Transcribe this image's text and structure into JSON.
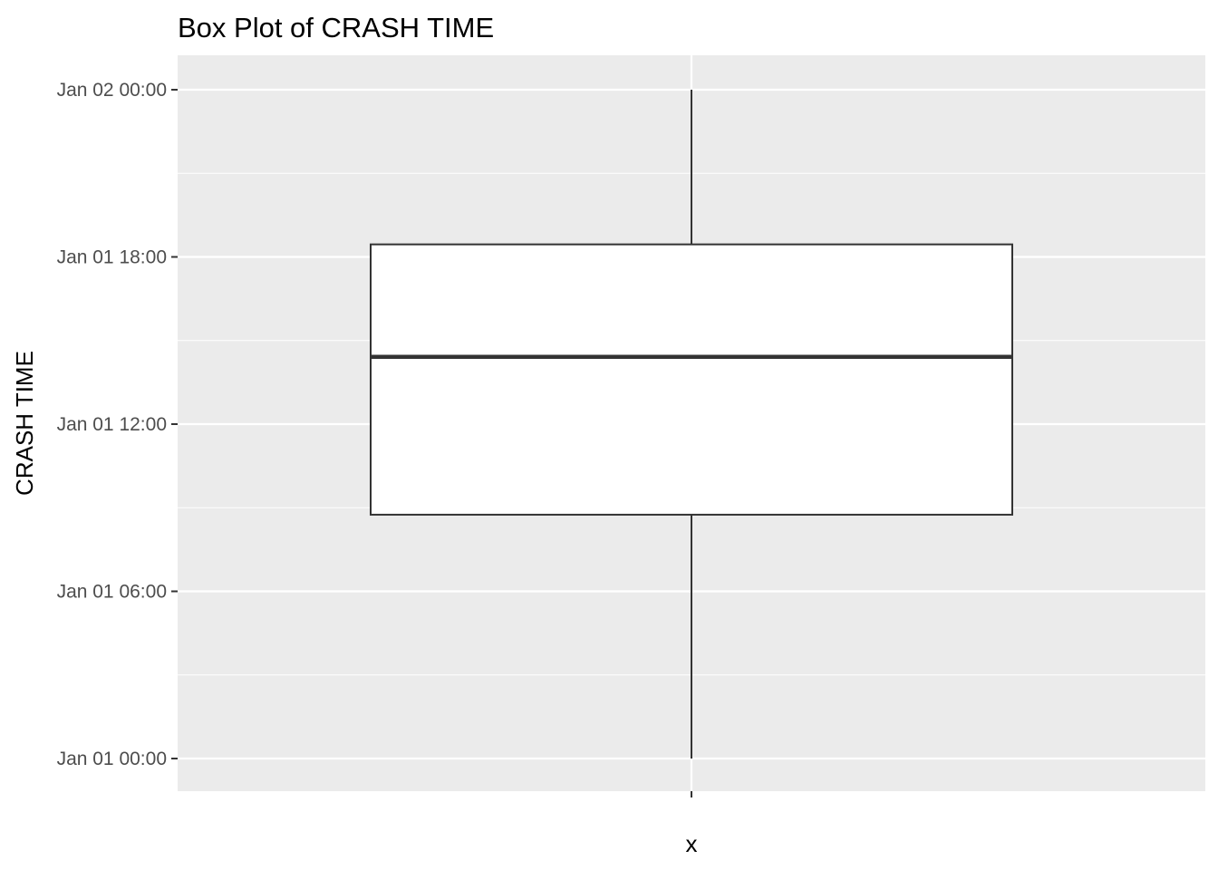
{
  "chart_data": {
    "type": "boxplot",
    "title": "Box Plot of CRASH TIME",
    "xlabel": "x",
    "ylabel": "CRASH TIME",
    "y_axis": {
      "ticks": [
        "Jan 01 00:00",
        "Jan 01 06:00",
        "Jan 01 12:00",
        "Jan 01 18:00",
        "Jan 02 00:00"
      ],
      "ylim": [
        "Jan 01 00:00",
        "Jan 02 00:00"
      ]
    },
    "x_ticks": [
      ""
    ],
    "series": [
      {
        "whisker_low": "Jan 01 00:00",
        "q1": "Jan 01 08:45",
        "median": "Jan 01 14:25",
        "q3": "Jan 01 18:27",
        "whisker_high": "Jan 02 00:00"
      }
    ],
    "grid": true,
    "panel_background": "#ebebeb",
    "grid_color": "#ffffff",
    "box_fill": "#ffffff",
    "box_stroke": "#333333",
    "legend": "none"
  }
}
